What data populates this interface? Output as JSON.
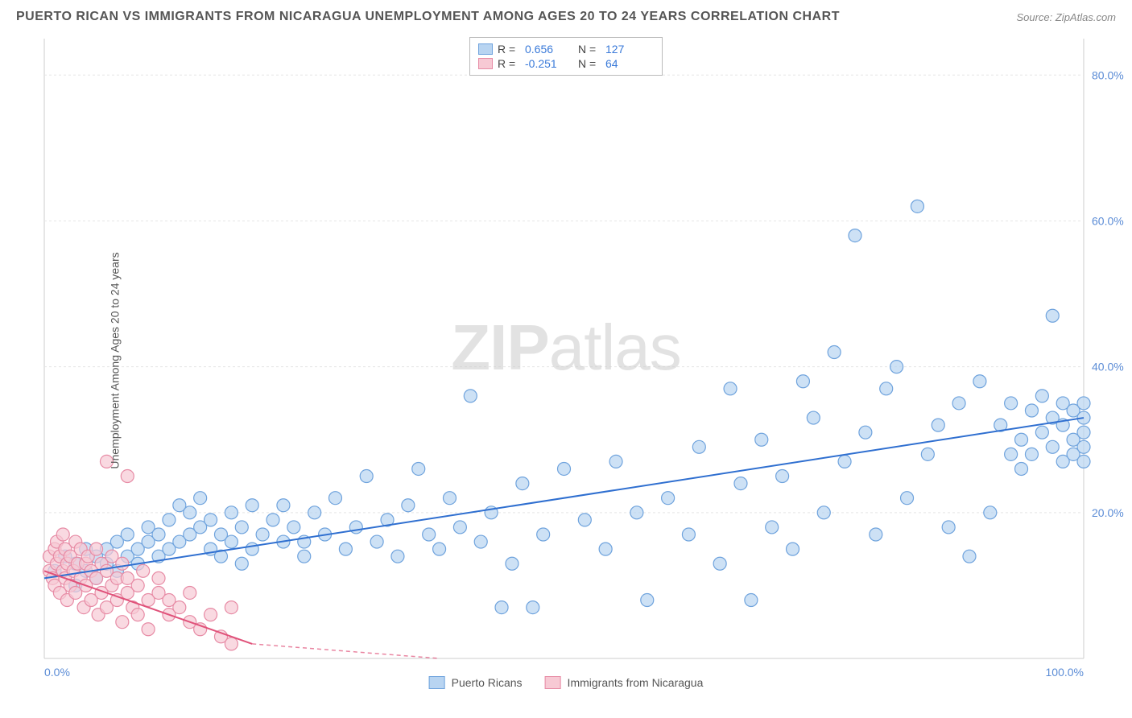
{
  "title": "PUERTO RICAN VS IMMIGRANTS FROM NICARAGUA UNEMPLOYMENT AMONG AGES 20 TO 24 YEARS CORRELATION CHART",
  "source": "Source: ZipAtlas.com",
  "y_axis_label": "Unemployment Among Ages 20 to 24 years",
  "watermark": "ZIPatlas",
  "chart": {
    "type": "scatter",
    "xlim": [
      0,
      100
    ],
    "ylim": [
      0,
      85
    ],
    "y_ticks": [
      20,
      40,
      60,
      80
    ],
    "y_tick_labels": [
      "20.0%",
      "40.0%",
      "60.0%",
      "80.0%"
    ],
    "x_tick_labels": [
      "0.0%",
      "100.0%"
    ],
    "background_color": "#ffffff",
    "grid_color": "#e5e5e5",
    "axis_color": "#cccccc",
    "tick_label_color": "#5b8cd6",
    "marker_radius": 8,
    "marker_stroke_width": 1.2,
    "line_width": 2,
    "series": [
      {
        "name": "Puerto Ricans",
        "fill": "#b8d4f1",
        "stroke": "#6fa3dd",
        "line_color": "#2f6fd0",
        "r_value": "0.656",
        "n_value": "127",
        "trend": {
          "x1": 0,
          "y1": 11,
          "x2": 100,
          "y2": 33
        },
        "points": [
          [
            1,
            12
          ],
          [
            2,
            14
          ],
          [
            3,
            10
          ],
          [
            3,
            13
          ],
          [
            4,
            15
          ],
          [
            4,
            12
          ],
          [
            5,
            11
          ],
          [
            5,
            14
          ],
          [
            6,
            13
          ],
          [
            6,
            15
          ],
          [
            7,
            16
          ],
          [
            7,
            12
          ],
          [
            8,
            14
          ],
          [
            8,
            17
          ],
          [
            9,
            15
          ],
          [
            9,
            13
          ],
          [
            10,
            16
          ],
          [
            10,
            18
          ],
          [
            11,
            14
          ],
          [
            11,
            17
          ],
          [
            12,
            15
          ],
          [
            12,
            19
          ],
          [
            13,
            16
          ],
          [
            13,
            21
          ],
          [
            14,
            17
          ],
          [
            14,
            20
          ],
          [
            15,
            18
          ],
          [
            15,
            22
          ],
          [
            16,
            15
          ],
          [
            16,
            19
          ],
          [
            17,
            17
          ],
          [
            17,
            14
          ],
          [
            18,
            20
          ],
          [
            18,
            16
          ],
          [
            19,
            18
          ],
          [
            19,
            13
          ],
          [
            20,
            21
          ],
          [
            20,
            15
          ],
          [
            21,
            17
          ],
          [
            22,
            19
          ],
          [
            23,
            16
          ],
          [
            23,
            21
          ],
          [
            24,
            18
          ],
          [
            25,
            16
          ],
          [
            25,
            14
          ],
          [
            26,
            20
          ],
          [
            27,
            17
          ],
          [
            28,
            22
          ],
          [
            29,
            15
          ],
          [
            30,
            18
          ],
          [
            31,
            25
          ],
          [
            32,
            16
          ],
          [
            33,
            19
          ],
          [
            34,
            14
          ],
          [
            35,
            21
          ],
          [
            36,
            26
          ],
          [
            37,
            17
          ],
          [
            38,
            15
          ],
          [
            39,
            22
          ],
          [
            40,
            18
          ],
          [
            41,
            36
          ],
          [
            42,
            16
          ],
          [
            43,
            20
          ],
          [
            44,
            7
          ],
          [
            45,
            13
          ],
          [
            46,
            24
          ],
          [
            47,
            7
          ],
          [
            48,
            17
          ],
          [
            50,
            26
          ],
          [
            52,
            19
          ],
          [
            54,
            15
          ],
          [
            55,
            27
          ],
          [
            57,
            20
          ],
          [
            58,
            8
          ],
          [
            60,
            22
          ],
          [
            62,
            17
          ],
          [
            63,
            29
          ],
          [
            65,
            13
          ],
          [
            66,
            37
          ],
          [
            67,
            24
          ],
          [
            68,
            8
          ],
          [
            69,
            30
          ],
          [
            70,
            18
          ],
          [
            71,
            25
          ],
          [
            72,
            15
          ],
          [
            73,
            38
          ],
          [
            74,
            33
          ],
          [
            75,
            20
          ],
          [
            76,
            42
          ],
          [
            77,
            27
          ],
          [
            78,
            58
          ],
          [
            79,
            31
          ],
          [
            80,
            17
          ],
          [
            81,
            37
          ],
          [
            82,
            40
          ],
          [
            83,
            22
          ],
          [
            84,
            62
          ],
          [
            85,
            28
          ],
          [
            86,
            32
          ],
          [
            87,
            18
          ],
          [
            88,
            35
          ],
          [
            89,
            14
          ],
          [
            90,
            38
          ],
          [
            91,
            20
          ],
          [
            92,
            32
          ],
          [
            93,
            28
          ],
          [
            93,
            35
          ],
          [
            94,
            26
          ],
          [
            94,
            30
          ],
          [
            95,
            34
          ],
          [
            95,
            28
          ],
          [
            96,
            31
          ],
          [
            96,
            36
          ],
          [
            97,
            29
          ],
          [
            97,
            33
          ],
          [
            97,
            47
          ],
          [
            98,
            27
          ],
          [
            98,
            32
          ],
          [
            98,
            35
          ],
          [
            99,
            30
          ],
          [
            99,
            34
          ],
          [
            99,
            28
          ],
          [
            100,
            31
          ],
          [
            100,
            33
          ],
          [
            100,
            29
          ],
          [
            100,
            35
          ],
          [
            100,
            27
          ]
        ]
      },
      {
        "name": "Immigrants from Nicaragua",
        "fill": "#f7c9d4",
        "stroke": "#e78ba5",
        "line_color": "#e0527a",
        "r_value": "-0.251",
        "n_value": "64",
        "trend_solid": {
          "x1": 0,
          "y1": 12,
          "x2": 20,
          "y2": 2
        },
        "trend_dashed": {
          "x1": 20,
          "y1": 2,
          "x2": 38,
          "y2": -7
        },
        "points": [
          [
            0.5,
            12
          ],
          [
            0.5,
            14
          ],
          [
            0.8,
            11
          ],
          [
            1,
            15
          ],
          [
            1,
            10
          ],
          [
            1.2,
            13
          ],
          [
            1.2,
            16
          ],
          [
            1.5,
            9
          ],
          [
            1.5,
            14
          ],
          [
            1.8,
            12
          ],
          [
            1.8,
            17
          ],
          [
            2,
            11
          ],
          [
            2,
            15
          ],
          [
            2.2,
            8
          ],
          [
            2.2,
            13
          ],
          [
            2.5,
            14
          ],
          [
            2.5,
            10
          ],
          [
            2.8,
            12
          ],
          [
            3,
            16
          ],
          [
            3,
            9
          ],
          [
            3.2,
            13
          ],
          [
            3.5,
            11
          ],
          [
            3.5,
            15
          ],
          [
            3.8,
            7
          ],
          [
            4,
            13
          ],
          [
            4,
            10
          ],
          [
            4.2,
            14
          ],
          [
            4.5,
            8
          ],
          [
            4.5,
            12
          ],
          [
            5,
            11
          ],
          [
            5,
            15
          ],
          [
            5.2,
            6
          ],
          [
            5.5,
            13
          ],
          [
            5.5,
            9
          ],
          [
            6,
            12
          ],
          [
            6,
            7
          ],
          [
            6.5,
            10
          ],
          [
            6.5,
            14
          ],
          [
            7,
            8
          ],
          [
            7,
            11
          ],
          [
            7.5,
            5
          ],
          [
            7.5,
            13
          ],
          [
            8,
            9
          ],
          [
            8,
            11
          ],
          [
            8.5,
            7
          ],
          [
            9,
            10
          ],
          [
            9,
            6
          ],
          [
            9.5,
            12
          ],
          [
            10,
            8
          ],
          [
            10,
            4
          ],
          [
            11,
            9
          ],
          [
            11,
            11
          ],
          [
            12,
            6
          ],
          [
            12,
            8
          ],
          [
            13,
            7
          ],
          [
            14,
            5
          ],
          [
            14,
            9
          ],
          [
            15,
            4
          ],
          [
            16,
            6
          ],
          [
            17,
            3
          ],
          [
            18,
            7
          ],
          [
            8,
            25
          ],
          [
            6,
            27
          ],
          [
            18,
            2
          ]
        ]
      }
    ]
  },
  "legend_top": {
    "r_label": "R =",
    "n_label": "N ="
  },
  "legend_bottom": {
    "items": [
      "Puerto Ricans",
      "Immigrants from Nicaragua"
    ]
  }
}
